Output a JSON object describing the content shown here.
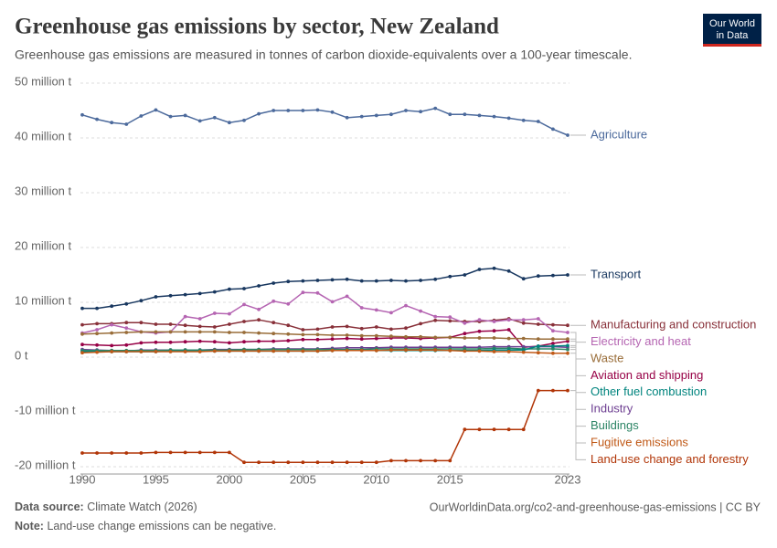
{
  "chart_data": {
    "type": "line",
    "title": "Greenhouse gas emissions by sector, New Zealand",
    "subtitle": "Greenhouse gas emissions are measured in tonnes of carbon dioxide-equivalents over a 100-year timescale.",
    "logo": [
      "Our World",
      "in Data"
    ],
    "source_label": "Data source:",
    "source": "Climate Watch (2026)",
    "url": "OurWorldinData.org/co2-and-greenhouse-gas-emissions | CC BY",
    "note_label": "Note:",
    "note": "Land-use change emissions can be negative.",
    "grid": true,
    "x": [
      1990,
      1991,
      1992,
      1993,
      1994,
      1995,
      1996,
      1997,
      1998,
      1999,
      2000,
      2001,
      2002,
      2003,
      2004,
      2005,
      2006,
      2007,
      2008,
      2009,
      2010,
      2011,
      2012,
      2013,
      2014,
      2015,
      2016,
      2017,
      2018,
      2019,
      2020,
      2021,
      2022,
      2023
    ],
    "xlim": [
      1990,
      2023
    ],
    "xticks": [
      1990,
      1995,
      2000,
      2005,
      2010,
      2015,
      2023
    ],
    "ylim": [
      -20000000.0,
      50000000.0
    ],
    "yticks": [
      {
        "value": -20000000.0,
        "label": "-20 million t"
      },
      {
        "value": -10000000.0,
        "label": "-10 million t"
      },
      {
        "value": 0,
        "label": "0 t"
      },
      {
        "value": 10000000.0,
        "label": "10 million t"
      },
      {
        "value": 20000000.0,
        "label": "20 million t"
      },
      {
        "value": 30000000.0,
        "label": "30 million t"
      },
      {
        "value": 40000000.0,
        "label": "40 million t"
      },
      {
        "value": 50000000.0,
        "label": "50 million t"
      }
    ],
    "series": [
      {
        "name": "Agriculture",
        "color": "#4c6a9c",
        "values": [
          44200000.0,
          43400000.0,
          42800000.0,
          42500000.0,
          44000000.0,
          45100000.0,
          43900000.0,
          44100000.0,
          43100000.0,
          43700000.0,
          42800000.0,
          43200000.0,
          44400000.0,
          45000000.0,
          45000000.0,
          45000000.0,
          45100000.0,
          44700000.0,
          43700000.0,
          43900000.0,
          44100000.0,
          44300000.0,
          45000000.0,
          44800000.0,
          45400000.0,
          44300000.0,
          44300000.0,
          44100000.0,
          43900000.0,
          43600000.0,
          43200000.0,
          43000000.0,
          41600000.0,
          40500000.0
        ]
      },
      {
        "name": "Transport",
        "color": "#18375f",
        "values": [
          8900000.0,
          8900000.0,
          9300000.0,
          9700000.0,
          10300000.0,
          11000000.0,
          11200000.0,
          11400000.0,
          11600000.0,
          11900000.0,
          12400000.0,
          12500000.0,
          13000000.0,
          13500000.0,
          13800000.0,
          13900000.0,
          14000000.0,
          14100000.0,
          14200000.0,
          13900000.0,
          13900000.0,
          14000000.0,
          13900000.0,
          14000000.0,
          14200000.0,
          14700000.0,
          15000000.0,
          16000000.0,
          16200000.0,
          15700000.0,
          14300000.0,
          14800000.0,
          14900000.0,
          15000000.0
        ]
      },
      {
        "name": "Manufacturing and construction",
        "color": "#883039",
        "values": [
          5900000.0,
          6100000.0,
          6100000.0,
          6300000.0,
          6300000.0,
          6000000.0,
          6000000.0,
          5800000.0,
          5600000.0,
          5500000.0,
          6000000.0,
          6500000.0,
          6800000.0,
          6300000.0,
          5800000.0,
          5000000.0,
          5100000.0,
          5500000.0,
          5600000.0,
          5200000.0,
          5500000.0,
          5100000.0,
          5300000.0,
          6100000.0,
          6700000.0,
          6600000.0,
          6500000.0,
          6500000.0,
          6700000.0,
          7000000.0,
          6200000.0,
          6000000.0,
          5900000.0,
          5800000.0
        ]
      },
      {
        "name": "Electricity and heat",
        "color": "#b565b2",
        "values": [
          4400000.0,
          5000000.0,
          5900000.0,
          5300000.0,
          4600000.0,
          4400000.0,
          4600000.0,
          7400000.0,
          7000000.0,
          8000000.0,
          7900000.0,
          9600000.0,
          8700000.0,
          10200000.0,
          9700000.0,
          11800000.0,
          11700000.0,
          10100000.0,
          11100000.0,
          9000000.0,
          8600000.0,
          8100000.0,
          9400000.0,
          8400000.0,
          7400000.0,
          7300000.0,
          6200000.0,
          6800000.0,
          6500000.0,
          6800000.0,
          6800000.0,
          7000000.0,
          4800000.0,
          4500000.0
        ]
      },
      {
        "name": "Aviation and shipping",
        "color": "#970046",
        "values": [
          2300000.0,
          2200000.0,
          2100000.0,
          2200000.0,
          2600000.0,
          2700000.0,
          2700000.0,
          2800000.0,
          2900000.0,
          2800000.0,
          2600000.0,
          2800000.0,
          2900000.0,
          2900000.0,
          3000000.0,
          3200000.0,
          3200000.0,
          3300000.0,
          3400000.0,
          3300000.0,
          3400000.0,
          3500000.0,
          3500000.0,
          3400000.0,
          3500000.0,
          3600000.0,
          4300000.0,
          4700000.0,
          4800000.0,
          5000000.0,
          1800000.0,
          2000000.0,
          2500000.0,
          2900000.0
        ]
      },
      {
        "name": "Waste",
        "color": "#996d39",
        "values": [
          4200000.0,
          4300000.0,
          4400000.0,
          4500000.0,
          4600000.0,
          4600000.0,
          4600000.0,
          4600000.0,
          4600000.0,
          4600000.0,
          4500000.0,
          4500000.0,
          4400000.0,
          4300000.0,
          4200000.0,
          4100000.0,
          4100000.0,
          4000000.0,
          4000000.0,
          3900000.0,
          3900000.0,
          3800000.0,
          3700000.0,
          3700000.0,
          3600000.0,
          3600000.0,
          3500000.0,
          3500000.0,
          3500000.0,
          3400000.0,
          3400000.0,
          3300000.0,
          3300000.0,
          3300000.0
        ]
      },
      {
        "name": "Industry",
        "color": "#6d3e91",
        "values": [
          1400000.0,
          1300000.0,
          1200000.0,
          1100000.0,
          1300000.0,
          1300000.0,
          1300000.0,
          1300000.0,
          1300000.0,
          1400000.0,
          1400000.0,
          1400000.0,
          1400000.0,
          1500000.0,
          1500000.0,
          1500000.0,
          1500000.0,
          1600000.0,
          1700000.0,
          1700000.0,
          1700000.0,
          1800000.0,
          1800000.0,
          1800000.0,
          1800000.0,
          1800000.0,
          1800000.0,
          1800000.0,
          1900000.0,
          1900000.0,
          1900000.0,
          1900000.0,
          1900000.0,
          1800000.0
        ]
      },
      {
        "name": "Buildings",
        "color": "#2c8465",
        "values": [
          1200000.0,
          1200000.0,
          1200000.0,
          1200000.0,
          1200000.0,
          1200000.0,
          1300000.0,
          1300000.0,
          1300000.0,
          1300000.0,
          1300000.0,
          1400000.0,
          1400000.0,
          1400000.0,
          1400000.0,
          1400000.0,
          1400000.0,
          1400000.0,
          1400000.0,
          1400000.0,
          1500000.0,
          1500000.0,
          1500000.0,
          1500000.0,
          1500000.0,
          1500000.0,
          1500000.0,
          1500000.0,
          1600000.0,
          1600000.0,
          1500000.0,
          1500000.0,
          1500000.0,
          1400000.0
        ]
      },
      {
        "name": "Other fuel combustion",
        "color": "#00847e",
        "values": [
          1000000.0,
          1000000.0,
          1000000.0,
          1000000.0,
          1000000.0,
          1000000.0,
          1100000.0,
          1100000.0,
          1100000.0,
          1100000.0,
          1100000.0,
          1100000.0,
          1100000.0,
          1100000.0,
          1100000.0,
          1100000.0,
          1100000.0,
          1200000.0,
          1200000.0,
          1200000.0,
          1200000.0,
          1200000.0,
          1200000.0,
          1200000.0,
          1200000.0,
          1200000.0,
          1200000.0,
          1200000.0,
          1300000.0,
          1300000.0,
          1300000.0,
          2000000.0,
          2000000.0,
          2100000.0
        ]
      },
      {
        "name": "Fugitive emissions",
        "color": "#c05917",
        "values": [
          800000.0,
          900000.0,
          1000000.0,
          1000000.0,
          1000000.0,
          1000000.0,
          1000000.0,
          1000000.0,
          1000000.0,
          1100000.0,
          1100000.0,
          1100000.0,
          1100000.0,
          1100000.0,
          1100000.0,
          1100000.0,
          1100000.0,
          1200000.0,
          1200000.0,
          1200000.0,
          1200000.0,
          1300000.0,
          1300000.0,
          1300000.0,
          1300000.0,
          1200000.0,
          1100000.0,
          1100000.0,
          1000000.0,
          1000000.0,
          900000.0,
          800000.0,
          700000.0,
          700000.0
        ]
      },
      {
        "name": "Land-use change and forestry",
        "color": "#b13507",
        "values": [
          -17500000.0,
          -17500000.0,
          -17500000.0,
          -17500000.0,
          -17500000.0,
          -17400000.0,
          -17400000.0,
          -17400000.0,
          -17400000.0,
          -17400000.0,
          -17400000.0,
          -19200000.0,
          -19200000.0,
          -19200000.0,
          -19200000.0,
          -19200000.0,
          -19200000.0,
          -19200000.0,
          -19200000.0,
          -19200000.0,
          -19200000.0,
          -18900000.0,
          -18900000.0,
          -18900000.0,
          -18900000.0,
          -18900000.0,
          -13200000.0,
          -13200000.0,
          -13200000.0,
          -13200000.0,
          -13200000.0,
          -6100000.0,
          -6100000.0,
          -6100000.0
        ]
      }
    ]
  }
}
